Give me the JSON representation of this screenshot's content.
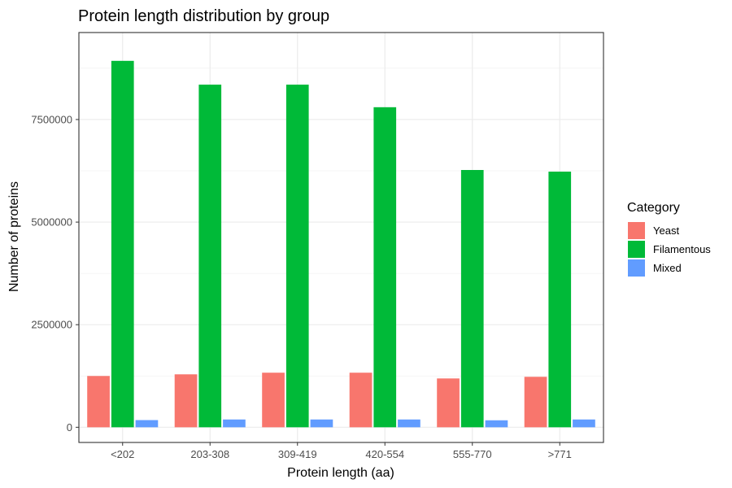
{
  "chart_data": {
    "type": "bar",
    "title": "Protein length distribution by group",
    "xlabel": "Protein length (aa)",
    "ylabel": "Number of proteins",
    "categories": [
      "<202",
      "203-308",
      "309-419",
      "420-554",
      "555-770",
      ">771"
    ],
    "series": [
      {
        "name": "Yeast",
        "color": "#F8766D",
        "values": [
          1250000,
          1290000,
          1330000,
          1330000,
          1190000,
          1230000
        ]
      },
      {
        "name": "Filamentous",
        "color": "#00BA38",
        "values": [
          8930000,
          8350000,
          8350000,
          7800000,
          6270000,
          6230000
        ]
      },
      {
        "name": "Mixed",
        "color": "#619CFF",
        "values": [
          175000,
          190000,
          190000,
          190000,
          170000,
          190000
        ]
      }
    ],
    "ylim": [
      -370000,
      9620000
    ],
    "yticks": [
      0,
      2500000,
      5000000,
      7500000
    ],
    "ytick_labels": [
      "0",
      "2500000",
      "5000000",
      "7500000"
    ],
    "legend": {
      "title": "Category",
      "position": "right"
    },
    "grid": true,
    "panel_border": true
  }
}
